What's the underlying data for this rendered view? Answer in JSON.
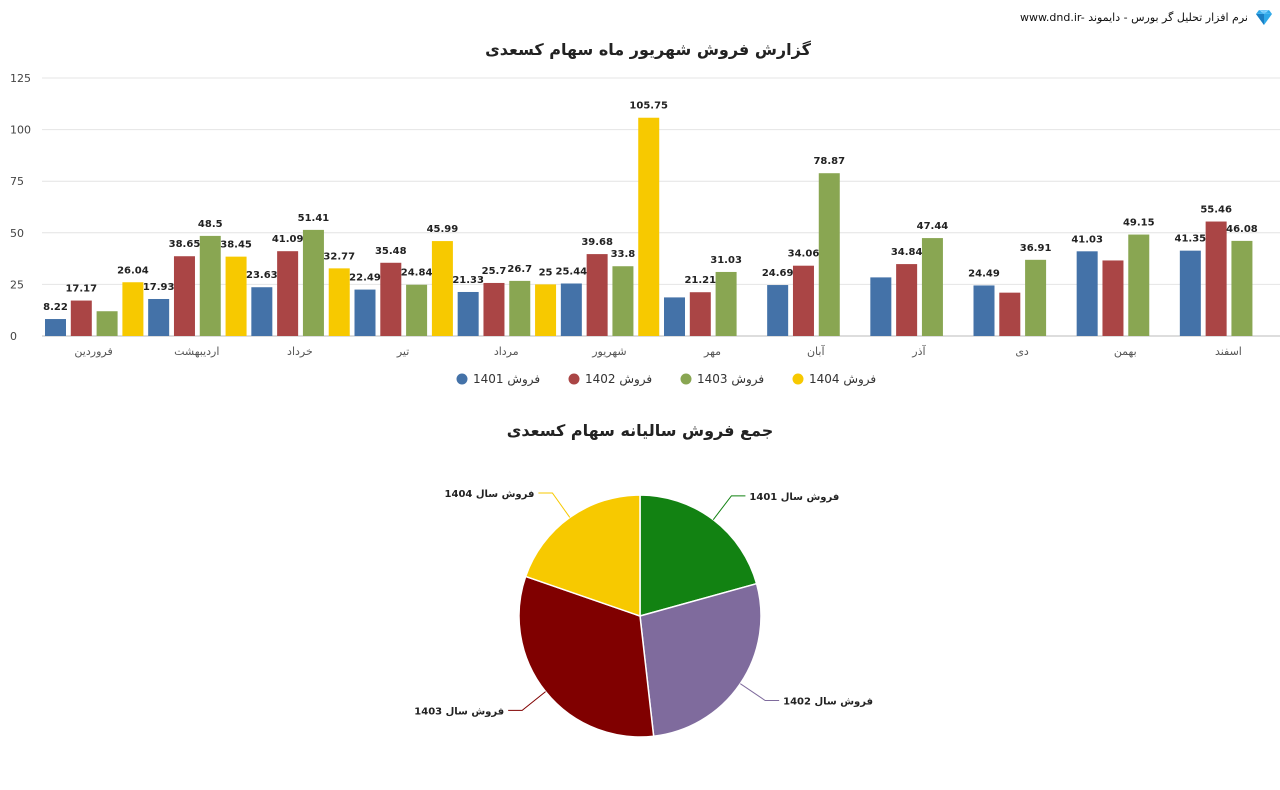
{
  "brand": {
    "text": "www.dnd.ir- نرم افزار تحلیل گر بورس - دایموند",
    "icon": "diamond-icon"
  },
  "chart_data": [
    {
      "type": "bar",
      "title": "گزارش فروش شهریور ماه سهام کسعدی",
      "categories": [
        "فروردین",
        "اردیبهشت",
        "خرداد",
        "تیر",
        "مرداد",
        "شهریور",
        "مهر",
        "آبان",
        "آذر",
        "دی",
        "بهمن",
        "اسفند"
      ],
      "ylim": [
        0,
        125
      ],
      "yticks": [
        0,
        25,
        50,
        75,
        100,
        125
      ],
      "grid": true,
      "legend_position": "bottom",
      "series": [
        {
          "name": "فروش 1401",
          "color": "#4472a8",
          "values": [
            8.22,
            17.93,
            23.63,
            22.49,
            21.33,
            25.44,
            18.7,
            24.69,
            28.4,
            24.49,
            41.03,
            41.35
          ],
          "labels": [
            "8.22",
            "17.93",
            "23.63",
            "22.49",
            "21.33",
            "25.44",
            "",
            "24.69",
            "",
            "24.49",
            "41.03",
            "41.35"
          ]
        },
        {
          "name": "فروش 1402",
          "color": "#aa4545",
          "values": [
            17.17,
            38.65,
            41.09,
            35.48,
            25.7,
            39.68,
            21.21,
            34.06,
            34.84,
            21.0,
            36.6,
            55.46
          ],
          "labels": [
            "17.17",
            "38.65",
            "41.09",
            "35.48",
            "25.7",
            "39.68",
            "21.21",
            "34.06",
            "34.84",
            "",
            "",
            "55.46"
          ]
        },
        {
          "name": "فروش 1403",
          "color": "#89a652",
          "values": [
            12.0,
            48.5,
            51.41,
            24.84,
            26.7,
            33.8,
            31.03,
            78.87,
            47.44,
            36.91,
            49.15,
            46.08
          ],
          "labels": [
            "",
            "48.5",
            "51.41",
            "24.84",
            "26.7",
            "33.8",
            "31.03",
            "78.87",
            "47.44",
            "36.91",
            "49.15",
            "46.08"
          ]
        },
        {
          "name": "فروش 1404",
          "color": "#f7c900",
          "values": [
            26.04,
            38.45,
            32.77,
            45.99,
            25,
            105.75,
            null,
            null,
            null,
            null,
            null,
            null
          ],
          "labels": [
            "26.04",
            "38.45",
            "32.77",
            "45.99",
            "25",
            "105.75",
            "",
            "",
            "",
            "",
            "",
            ""
          ]
        }
      ]
    },
    {
      "type": "pie",
      "title": "جمع فروش سالیانه سهام کسعدی",
      "slices": [
        {
          "name": "فروش سال 1401",
          "value": 20.7,
          "color": "#128212"
        },
        {
          "name": "فروش سال 1402",
          "value": 27.5,
          "color": "#7f6b9d"
        },
        {
          "name": "فروش سال 1403",
          "value": 32.1,
          "color": "#800000"
        },
        {
          "name": "فروش سال 1404",
          "value": 19.7,
          "color": "#f7c900"
        }
      ]
    }
  ]
}
